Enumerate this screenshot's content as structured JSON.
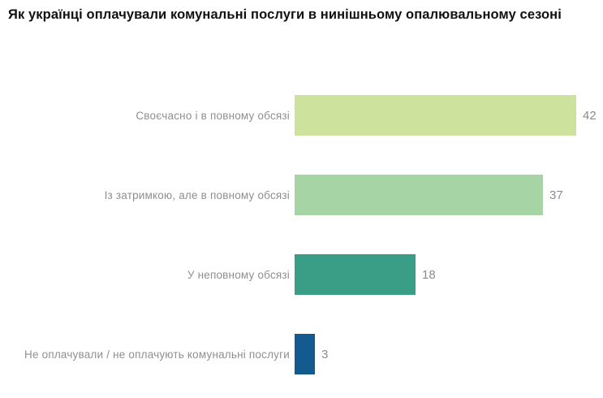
{
  "title": "Як українці оплачували комунальні послуги в нинішньому опалювальному сезоні",
  "colors": {
    "background": "#ffffff",
    "title_text": "#111111",
    "category_label_text": "#8f8f8f",
    "value_label_text": "#8c8c8c"
  },
  "chart_data": {
    "type": "bar",
    "orientation": "horizontal",
    "title": "Як українці оплачували комунальні послуги в нинішньому опалювальному сезоні",
    "categories": [
      "Своєчасно і в повному обсязі",
      "Із затримкою, але в повному обсязі",
      "У неповному обсязі",
      "Не оплачували / не оплачують комунальні послуги"
    ],
    "values": [
      42,
      37,
      18,
      3
    ],
    "bar_colors": [
      "#cde29d",
      "#a6d4a4",
      "#399e85",
      "#135a8e"
    ],
    "xlabel": "",
    "ylabel": "",
    "xlim": [
      0,
      42
    ],
    "grid": false,
    "legend": false,
    "value_labels_shown": true
  }
}
